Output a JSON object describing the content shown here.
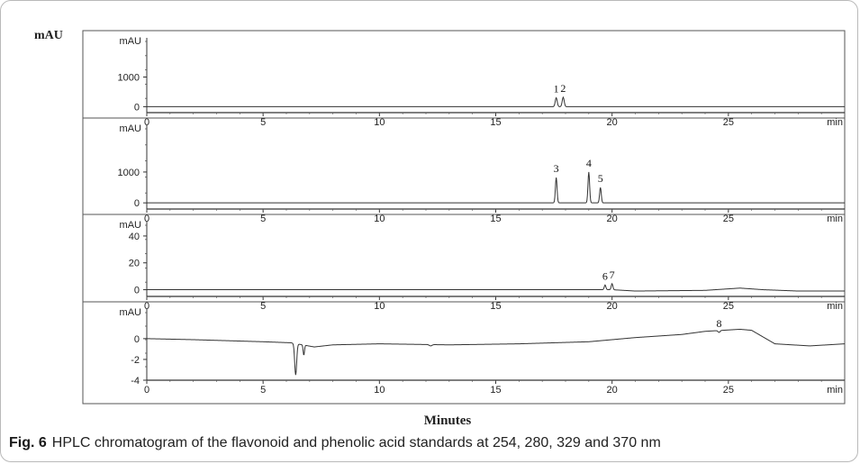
{
  "figure": {
    "y_unit_label": "mAU",
    "x_label": "Minutes",
    "caption_label": "Fig. 6",
    "caption_text": "HPLC chromatogram of the flavonoid and phenolic acid standards at 254, 280, 329 and 370 nm"
  },
  "chart_data": [
    {
      "type": "line",
      "ylabel": "mAU",
      "xlabel": "min",
      "xlim": [
        0,
        30
      ],
      "ylim": [
        -200,
        2200
      ],
      "x_ticks": [
        "0",
        "5",
        "10",
        "15",
        "20",
        "25"
      ],
      "y_ticks": [
        "1000",
        "0"
      ],
      "y_tick_values": [
        1000,
        0
      ],
      "baseline": 0,
      "peaks": [
        {
          "label": "1",
          "x": 17.6,
          "y": 300,
          "width": 0.06
        },
        {
          "label": "2",
          "x": 17.9,
          "y": 320,
          "width": 0.06
        }
      ],
      "drift": []
    },
    {
      "type": "line",
      "ylabel": "mAU",
      "xlabel": "min",
      "xlim": [
        0,
        30
      ],
      "ylim": [
        -200,
        2400
      ],
      "x_ticks": [
        "0",
        "5",
        "10",
        "15",
        "20",
        "25"
      ],
      "y_ticks": [
        "1000",
        "0"
      ],
      "y_tick_values": [
        1000,
        0
      ],
      "baseline": 0,
      "peaks": [
        {
          "label": "3",
          "x": 17.6,
          "y": 820,
          "width": 0.05
        },
        {
          "label": "4",
          "x": 19.0,
          "y": 1000,
          "width": 0.05
        },
        {
          "label": "5",
          "x": 19.5,
          "y": 500,
          "width": 0.05
        }
      ],
      "drift": []
    },
    {
      "type": "line",
      "ylabel": "mAU",
      "xlabel": "min",
      "xlim": [
        0,
        30
      ],
      "ylim": [
        -5,
        48
      ],
      "x_ticks": [
        "0",
        "5",
        "10",
        "15",
        "20",
        "25"
      ],
      "y_ticks": [
        "40",
        "20",
        "0"
      ],
      "y_tick_values": [
        40,
        20,
        0
      ],
      "baseline": 0,
      "peaks": [
        {
          "label": "6",
          "x": 19.7,
          "y": 3.5,
          "width": 0.05
        },
        {
          "label": "7",
          "x": 20.0,
          "y": 4.5,
          "width": 0.05
        }
      ],
      "drift": [
        [
          0,
          0
        ],
        [
          20,
          0
        ],
        [
          21,
          -1
        ],
        [
          24,
          -0.5
        ],
        [
          25.5,
          1.2
        ],
        [
          26.5,
          0
        ],
        [
          28,
          -1
        ],
        [
          30,
          -1
        ]
      ]
    },
    {
      "type": "line",
      "ylabel": "mAU",
      "xlabel": "min",
      "xlim": [
        0,
        30
      ],
      "ylim": [
        -4,
        2.5
      ],
      "x_ticks": [
        "0",
        "5",
        "10",
        "15",
        "20",
        "25"
      ],
      "y_ticks": [
        "0",
        "-2",
        "-4"
      ],
      "y_tick_values": [
        0,
        -2,
        -4
      ],
      "baseline": 0,
      "peaks": [
        {
          "label": "8",
          "x": 24.6,
          "y": 0.6,
          "width": 0.06
        },
        {
          "label": "",
          "x": 6.4,
          "y": -3.5,
          "width": 0.06
        },
        {
          "label": "",
          "x": 6.75,
          "y": -1.6,
          "width": 0.04
        },
        {
          "label": "",
          "x": 12.2,
          "y": -0.7,
          "width": 0.08
        }
      ],
      "drift": [
        [
          0,
          0
        ],
        [
          2,
          -0.1
        ],
        [
          5,
          -0.3
        ],
        [
          6.2,
          -0.4
        ],
        [
          7.2,
          -0.8
        ],
        [
          8,
          -0.6
        ],
        [
          10,
          -0.5
        ],
        [
          13,
          -0.6
        ],
        [
          16,
          -0.5
        ],
        [
          19,
          -0.3
        ],
        [
          21,
          0.1
        ],
        [
          23,
          0.4
        ],
        [
          24,
          0.7
        ],
        [
          25.5,
          0.9
        ],
        [
          26,
          0.8
        ],
        [
          27,
          -0.5
        ],
        [
          28.5,
          -0.7
        ],
        [
          30,
          -0.5
        ]
      ]
    }
  ]
}
